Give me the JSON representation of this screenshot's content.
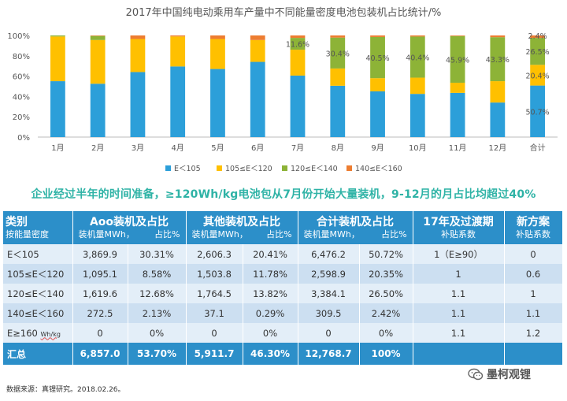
{
  "chart_data": {
    "type": "bar",
    "stacked": true,
    "title": "2017年中国纯电动乘用车产量中不同能量密度电池包装机占比统计/%",
    "categories": [
      "1月",
      "2月",
      "3月",
      "4月",
      "5月",
      "6月",
      "7月",
      "8月",
      "9月",
      "10月",
      "11月",
      "12月",
      "合计"
    ],
    "yticks": [
      "0%",
      "20%",
      "40%",
      "60%",
      "80%",
      "100%"
    ],
    "ylim": [
      0,
      100
    ],
    "grid": false,
    "legend_position": "bottom",
    "series": [
      {
        "name": "E＜105",
        "color": "#2c9fd9",
        "values": [
          55,
          52.5,
          64,
          69.5,
          67,
          74,
          60.5,
          50.5,
          45,
          42.5,
          43.5,
          34,
          50.7
        ]
      },
      {
        "name": "105≤E＜120",
        "color": "#ffc000",
        "values": [
          44,
          43,
          32.5,
          29.5,
          29.5,
          21.5,
          25.5,
          17,
          13,
          16,
          10,
          21,
          20.4
        ]
      },
      {
        "name": "120≤E＜140",
        "color": "#8db337",
        "values": [
          1,
          4,
          0,
          0,
          0,
          0,
          11.6,
          30.4,
          40.5,
          40.4,
          45.9,
          43.3,
          26.5
        ]
      },
      {
        "name": "140≤E＜160",
        "color": "#ed7d31",
        "values": [
          0,
          0.5,
          3.5,
          1,
          3.5,
          4.5,
          2.4,
          2.1,
          1.5,
          1.1,
          0.6,
          1.7,
          2.4
        ]
      }
    ],
    "data_labels": [
      {
        "category": "7月",
        "series": "120≤E＜140",
        "text": "11.6%"
      },
      {
        "category": "8月",
        "series": "120≤E＜140",
        "text": "30.4%"
      },
      {
        "category": "9月",
        "series": "120≤E＜140",
        "text": "40.5%"
      },
      {
        "category": "10月",
        "series": "120≤E＜140",
        "text": "40.4%"
      },
      {
        "category": "11月",
        "series": "120≤E＜140",
        "text": "45.9%"
      },
      {
        "category": "12月",
        "series": "120≤E＜140",
        "text": "43.3%"
      },
      {
        "category": "合计",
        "series": "E＜105",
        "text": "50.7%"
      },
      {
        "category": "合计",
        "series": "105≤E＜120",
        "text": "20.4%"
      },
      {
        "category": "合计",
        "series": "120≤E＜140",
        "text": "26.5%"
      },
      {
        "category": "合计",
        "series": "140≤E＜160",
        "text": "2.4%"
      }
    ]
  },
  "headline": "企业经过半年的时间准备，≥120Wh/kg电池包从7月份开始大量装机，9-12月的月占比均超过40%",
  "table": {
    "headers": {
      "category_top": "类别",
      "category_sub": "按能量密度",
      "aoo_top": "Aoo装机及占比",
      "aoo_sub_a": "装机量MWh，",
      "aoo_sub_b": "占比%",
      "other_top": "其他装机及占比",
      "other_sub_a": "装机量MWh，",
      "other_sub_b": "占比%",
      "total_top": "合计装机及占比",
      "total_sub_a": "装机量MWh，",
      "total_sub_b": "占比%",
      "transition_top": "17年及过渡期",
      "transition_sub": "补贴系数",
      "new_top": "新方案",
      "new_sub": "补贴系数"
    },
    "rows": [
      {
        "category": "E＜105",
        "unit": "",
        "aoo_mwh": "3,869.9",
        "aoo_pct": "30.31%",
        "other_mwh": "2,606.3",
        "other_pct": "20.41%",
        "total_mwh": "6,476.2",
        "total_pct": "50.72%",
        "transition": "1（E≥90）",
        "new": "0"
      },
      {
        "category": "105≤E＜120",
        "unit": "",
        "aoo_mwh": "1,095.1",
        "aoo_pct": "8.58%",
        "other_mwh": "1,503.8",
        "other_pct": "11.78%",
        "total_mwh": "2,598.9",
        "total_pct": "20.35%",
        "transition": "1",
        "new": "0.6"
      },
      {
        "category": "120≤E＜140",
        "unit": "",
        "aoo_mwh": "1,619.6",
        "aoo_pct": "12.68%",
        "other_mwh": "1,764.5",
        "other_pct": "13.82%",
        "total_mwh": "3,384.1",
        "total_pct": "26.50%",
        "transition": "1.1",
        "new": "1"
      },
      {
        "category": "140≤E＜160",
        "unit": "",
        "aoo_mwh": "272.5",
        "aoo_pct": "2.13%",
        "other_mwh": "37.1",
        "other_pct": "0.29%",
        "total_mwh": "309.5",
        "total_pct": "2.42%",
        "transition": "1.1",
        "new": "1.1"
      },
      {
        "category": "E≥160 ",
        "unit": "Wh/kg",
        "aoo_mwh": "0",
        "aoo_pct": "0%",
        "other_mwh": "0",
        "other_pct": "0%",
        "total_mwh": "0",
        "total_pct": "0%",
        "transition": "1.1",
        "new": "1.2"
      }
    ],
    "footer": {
      "category": "汇总",
      "aoo_mwh": "6,857.0",
      "aoo_pct": "53.70%",
      "other_mwh": "5,911.7",
      "other_pct": "46.30%",
      "total_mwh": "12,768.7",
      "total_pct": "100%"
    }
  },
  "source": "数据来源：真锂研究。2018.02.26。",
  "watermark": "墨柯观锂",
  "watermark_icon": "wechat-icon"
}
